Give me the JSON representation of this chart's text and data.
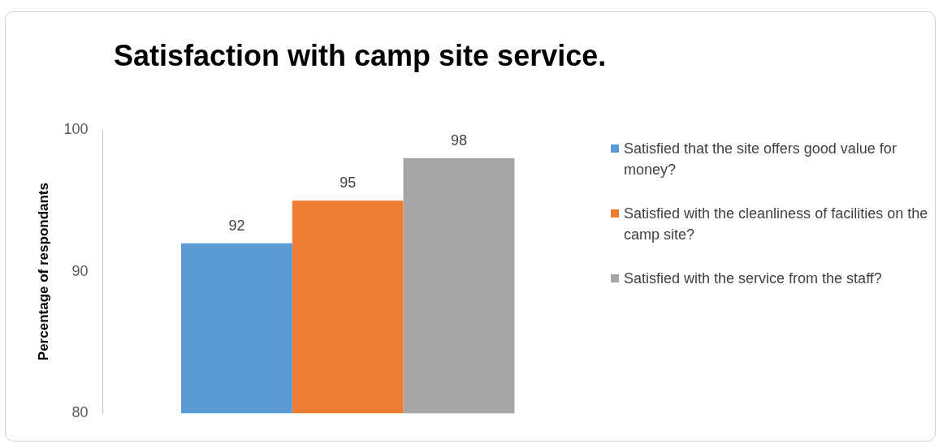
{
  "chart_data": {
    "type": "bar",
    "title": "Satisfaction with camp site service.",
    "ylabel": "Percentage of respondants",
    "categories": [
      null
    ],
    "series": [
      {
        "name": "Satisfied that the site offers good value for money?",
        "color": "#5b9bd5",
        "values": [
          92
        ]
      },
      {
        "name": "Satisfied with the cleanliness of facilities on the camp site?",
        "color": "#ed7d31",
        "values": [
          95
        ]
      },
      {
        "name": "Satisfied with the service from the staff?",
        "color": "#a5a5a5",
        "values": [
          98
        ]
      }
    ],
    "ylim": [
      80,
      100
    ],
    "yticks": [
      80,
      90,
      100
    ],
    "grid": false,
    "legend": "right",
    "data_labels": true
  }
}
